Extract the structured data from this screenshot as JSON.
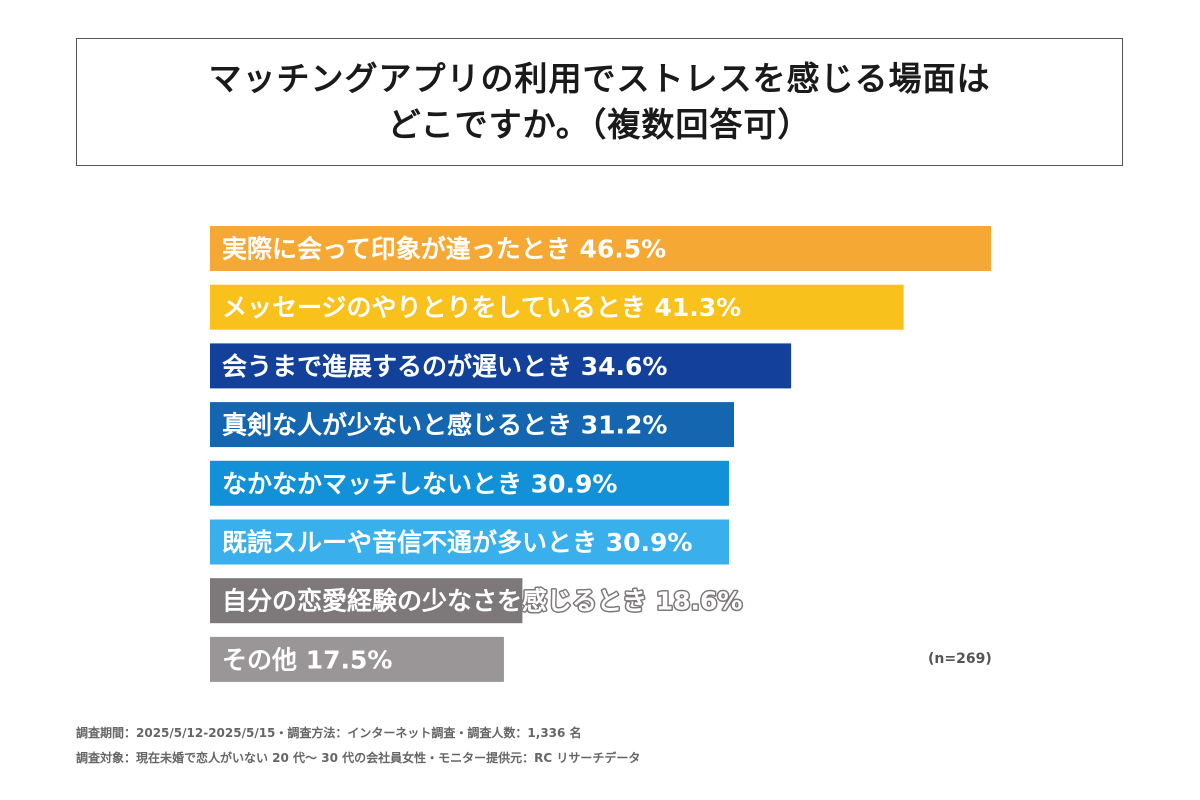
{
  "title": {
    "line1": "マッチングアプリの利用でストレスを感じる場面は",
    "line2": "どこですか。（複数回答可）"
  },
  "n_label": "(n=269)",
  "footer": {
    "line1": "調査期間：2025/5/12-2025/5/15・調査方法：インターネット調査・調査人数：1,336 名",
    "line2": "調査対象：現在未婚で恋人がいない 20 代～ 30 代の会社員女性・モニター提供元：RC リサーチデータ"
  },
  "chart_data": {
    "type": "bar",
    "orientation": "horizontal",
    "categories": [
      "実際に会って印象が違ったとき",
      "メッセージのやりとりをしているとき",
      "会うまで進展するのが遅いとき",
      "真剣な人が少ないと感じるとき",
      "なかなかマッチしないとき",
      "既読スルーや音信不通が多いとき",
      "自分の恋愛経験の少なさを感じるとき",
      "その他"
    ],
    "values": [
      46.5,
      41.3,
      34.6,
      31.2,
      30.9,
      30.9,
      18.6,
      17.5
    ],
    "value_labels": [
      "46.5%",
      "41.3%",
      "34.6%",
      "31.2%",
      "30.9%",
      "30.9%",
      "18.6%",
      "17.5%"
    ],
    "colors": [
      "#F5A833",
      "#F9C11B",
      "#12409A",
      "#1466B0",
      "#1291D8",
      "#39B0EC",
      "#7D7879",
      "#9A9698"
    ],
    "grid": false,
    "legend": "none"
  }
}
